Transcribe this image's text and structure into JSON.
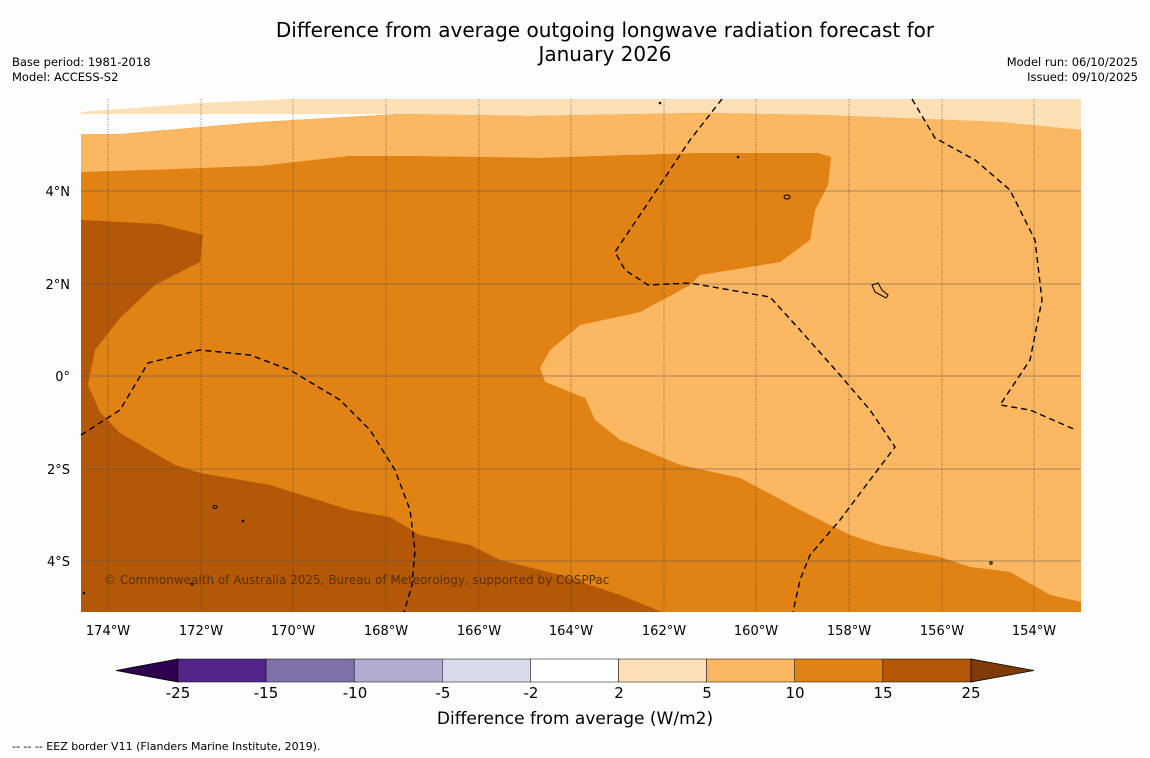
{
  "title": {
    "line1": "Difference from average outgoing longwave radiation forecast for",
    "line2": "January 2026"
  },
  "meta_left": {
    "base_period": "Base period: 1981-2018",
    "model": "Model: ACCESS-S2"
  },
  "meta_right": {
    "model_run": "Model run: 06/10/2025",
    "issued": "Issued: 09/10/2025"
  },
  "map": {
    "lon_ticks": [
      "174°W",
      "172°W",
      "170°W",
      "168°W",
      "166°W",
      "164°W",
      "162°W",
      "160°W",
      "158°W",
      "156°W",
      "154°W"
    ],
    "lat_ticks": [
      "4°N",
      "2°N",
      "0°",
      "2°S",
      "4°S"
    ],
    "copyright": "© Commonwealth of Australia 2025, Bureau of Meteorology, supported by COSPPac"
  },
  "colorbar": {
    "title": "Difference from average (W/m2)",
    "labels": [
      "-25",
      "-15",
      "-10",
      "-5",
      "-2",
      "2",
      "5",
      "10",
      "15",
      "25"
    ],
    "colors": [
      "#2d0050",
      "#542588",
      "#8073ac",
      "#b2abd2",
      "#d8daeb",
      "#ffffff",
      "#fee0b6",
      "#fbb761",
      "#e08214",
      "#b35806",
      "#7f3b08"
    ]
  },
  "legend_footer": "--  --  -- EEZ border V11 (Flanders Marine Institute, 2019)."
}
